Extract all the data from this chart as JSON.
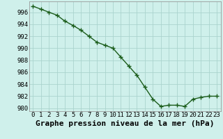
{
  "x": [
    0,
    1,
    2,
    3,
    4,
    5,
    6,
    7,
    8,
    9,
    10,
    11,
    12,
    13,
    14,
    15,
    16,
    17,
    18,
    19,
    20,
    21,
    22,
    23
  ],
  "y": [
    997.0,
    996.5,
    996.0,
    995.5,
    994.5,
    993.8,
    993.0,
    992.0,
    991.0,
    990.5,
    990.0,
    988.5,
    987.0,
    985.5,
    983.5,
    981.5,
    980.3,
    980.5,
    980.5,
    980.3,
    981.5,
    981.8,
    982.0,
    982.0
  ],
  "line_color": "#1a5c1a",
  "marker": "+",
  "marker_color": "#1a5c1a",
  "bg_color": "#cff0eb",
  "grid_color": "#aad4ce",
  "xlabel": "Graphe pression niveau de la mer (hPa)",
  "xlabel_fontsize": 8,
  "ylim": [
    979.5,
    997.8
  ],
  "xlim": [
    -0.5,
    23.5
  ],
  "yticks": [
    980,
    982,
    984,
    986,
    988,
    990,
    992,
    994,
    996
  ],
  "xticks": [
    0,
    1,
    2,
    3,
    4,
    5,
    6,
    7,
    8,
    9,
    10,
    11,
    12,
    13,
    14,
    15,
    16,
    17,
    18,
    19,
    20,
    21,
    22,
    23
  ],
  "tick_fontsize": 6.5,
  "line_width": 1.0,
  "marker_size": 4
}
